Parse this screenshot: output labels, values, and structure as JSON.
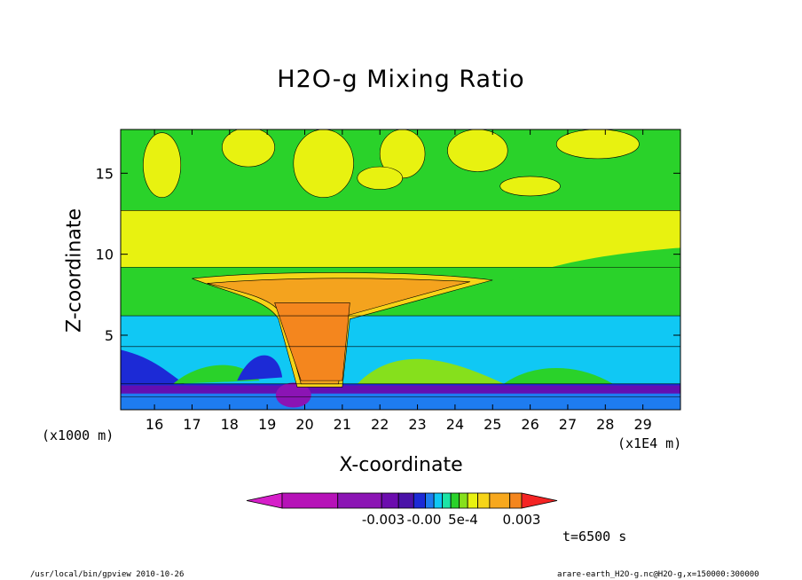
{
  "chart_data": {
    "type": "heatmap",
    "title": "H2O-g Mixing Ratio",
    "xlabel": "X-coordinate",
    "ylabel": "Z-coordinate",
    "x_scale_note": "(x1E4 m)",
    "y_scale_note": "(x1000 m)",
    "xlim": [
      15.1,
      30
    ],
    "ylim": [
      0.4,
      17.7
    ],
    "x_ticks": [
      16,
      17,
      18,
      19,
      20,
      21,
      22,
      23,
      24,
      25,
      26,
      27,
      28,
      29
    ],
    "y_ticks": [
      5,
      10,
      15
    ],
    "grid": false,
    "colorbar": {
      "colors": [
        "#d61ec9",
        "#b612b8",
        "#8b14b4",
        "#6c0cae",
        "#4a12a8",
        "#1c2ad6",
        "#1e7cf0",
        "#10c8f4",
        "#1ce4a6",
        "#2ad22a",
        "#86e01c",
        "#e8f210",
        "#f6d418",
        "#f7a81e",
        "#f4861e",
        "#f42424"
      ],
      "tick_labels": [
        "-0.003",
        "-0.00",
        "5e-4",
        "0.003"
      ]
    },
    "bands": [
      {
        "zmin": 0.4,
        "zmax": 1.2,
        "color": "#1e7cf0"
      },
      {
        "zmin": 1.2,
        "zmax": 4.3,
        "color": "#10c8f4"
      },
      {
        "zmin": 4.3,
        "zmax": 6.2,
        "color": "#10c8f4"
      },
      {
        "zmin": 6.2,
        "zmax": 9.2,
        "color": "#2ad22a"
      },
      {
        "zmin": 9.2,
        "zmax": 12.7,
        "color": "#e8f210"
      },
      {
        "zmin": 12.7,
        "zmax": 17.7,
        "color": "#2ad22a"
      }
    ],
    "anvil": {
      "x_range": [
        18.9,
        21.5
      ],
      "z_range": [
        1.5,
        8.0
      ],
      "color": "#f4a31e"
    }
  },
  "time_label": "t=6500 s",
  "footer": {
    "left": "/usr/local/bin/gpview  2010-10-26",
    "right": "arare-earth_H2O-g.nc@H2O-g,x=150000:300000"
  },
  "colors": {
    "blue": "#1e7cf0",
    "cyan": "#10c8f4",
    "green": "#2ad22a",
    "yellow": "#e8f210",
    "orange": "#f4a31e",
    "purple": "#6c0cae"
  }
}
